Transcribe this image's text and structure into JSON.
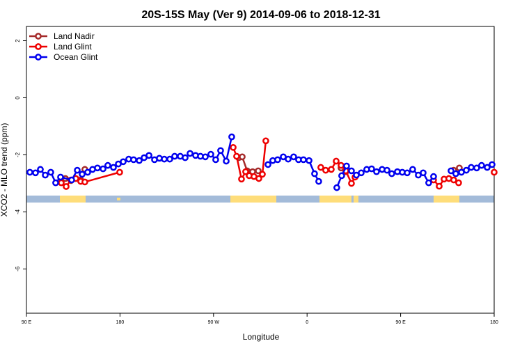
{
  "chart_data": {
    "type": "line",
    "title": "20S-15S May (Ver 9)   2014-09-06 to 2018-12-31",
    "xlabel": "Longitude",
    "ylabel": "XCO2 - MLO trend (ppm)",
    "xlim": [
      90,
      540
    ],
    "ylim": [
      -7.55,
      2.5
    ],
    "xticks": [
      {
        "value": 90,
        "label": "90 E"
      },
      {
        "value": 180,
        "label": "180"
      },
      {
        "value": 270,
        "label": "90 W"
      },
      {
        "value": 360,
        "label": "0"
      },
      {
        "value": 450,
        "label": "90 E"
      },
      {
        "value": 540,
        "label": "180"
      }
    ],
    "yticks": [
      2,
      0,
      -2,
      -4,
      -6
    ],
    "legend": "top-left",
    "series": [
      {
        "name": "Land Nadir",
        "color": "#a52a2a",
        "x": [
          127.5,
          132.9,
          142.2,
          146.2,
          240,
          294.2,
          297.6,
          302.3,
          307.6,
          313.0,
          350,
          392.7,
          397.3,
          450,
          501.1,
          506.5
        ],
        "values": [
          -2.83,
          -2.9,
          -2.88,
          -2.51,
          null,
          -2.1,
          -2.07,
          -2.56,
          -2.59,
          -2.56,
          null,
          -2.46,
          -2.59,
          null,
          -2.54,
          -2.46
        ]
      },
      {
        "name": "Land Glint",
        "color": "#ee0000",
        "x": [
          123.5,
          128.2,
          132.9,
          137.5,
          142.2,
          146.2,
          179.7,
          250,
          288.9,
          292.2,
          296.9,
          300.9,
          304.3,
          308.9,
          313.6,
          317.0,
          320.3,
          350,
          373.2,
          377.9,
          383.3,
          388.0,
          392.7,
          397.3,
          402.7,
          406.1,
          450,
          481.7,
          487.1,
          491.8,
          496.4,
          501.1,
          505.8,
          520,
          540.0
        ],
        "values": [
          -2.98,
          -3.11,
          -2.88,
          -2.83,
          -2.93,
          -2.95,
          -2.61,
          null,
          -1.74,
          -2.05,
          -2.85,
          -2.59,
          -2.73,
          -2.76,
          -2.83,
          -2.68,
          -1.51,
          null,
          -2.44,
          -2.54,
          -2.51,
          -2.22,
          -2.37,
          -2.56,
          -3.0,
          -2.78,
          null,
          -2.88,
          -3.1,
          -2.85,
          -2.83,
          -2.88,
          -2.98,
          null,
          -2.61
        ]
      },
      {
        "name": "Ocean Glint",
        "color": "#0000ee",
        "x": [
          93.3,
          98.7,
          103.4,
          108.1,
          113.4,
          118.1,
          122.8,
          133.5,
          138.9,
          143.6,
          148.9,
          153.6,
          158.3,
          163.7,
          168.3,
          173.7,
          178.4,
          183.1,
          188.4,
          193.1,
          198.5,
          203.2,
          207.9,
          213.2,
          217.9,
          222.6,
          227.9,
          232.6,
          238.0,
          242.7,
          247.4,
          252.7,
          257.4,
          262.1,
          267.4,
          272.1,
          276.8,
          282.2,
          287.5,
          305,
          322.4,
          327.0,
          331.7,
          337.1,
          341.8,
          347.1,
          351.8,
          356.5,
          361.9,
          367.2,
          371.2,
          380,
          388.6,
          393.3,
          398.0,
          402.7,
          407.4,
          412.1,
          417.4,
          422.1,
          426.8,
          432.2,
          436.9,
          441.5,
          446.9,
          451.6,
          456.3,
          461.6,
          467.0,
          471.7,
          477.0,
          481.7,
          490,
          498.5,
          503.1,
          508.5,
          513.2,
          517.9,
          523.2,
          527.9,
          533.3,
          538.0
        ],
        "values": [
          -2.61,
          -2.63,
          -2.51,
          -2.71,
          -2.61,
          -2.98,
          -2.78,
          -2.88,
          -2.54,
          -2.68,
          -2.61,
          -2.51,
          -2.46,
          -2.49,
          -2.37,
          -2.44,
          -2.32,
          -2.24,
          -2.15,
          -2.17,
          -2.2,
          -2.1,
          -2.02,
          -2.17,
          -2.12,
          -2.15,
          -2.15,
          -2.05,
          -2.05,
          -2.1,
          -1.95,
          -2.02,
          -2.05,
          -2.07,
          -1.98,
          -2.17,
          -1.85,
          -2.22,
          -1.37,
          null,
          -2.34,
          -2.2,
          -2.17,
          -2.07,
          -2.15,
          -2.07,
          -2.17,
          -2.17,
          -2.2,
          -2.66,
          -2.93,
          null,
          -3.15,
          -2.73,
          -2.39,
          -2.56,
          -2.71,
          -2.63,
          -2.51,
          -2.49,
          -2.59,
          -2.51,
          -2.54,
          -2.66,
          -2.59,
          -2.61,
          -2.63,
          -2.51,
          -2.71,
          -2.63,
          -2.98,
          -2.76,
          null,
          -2.56,
          -2.66,
          -2.61,
          -2.54,
          -2.44,
          -2.46,
          -2.37,
          -2.44,
          -2.34
        ]
      }
    ]
  }
}
